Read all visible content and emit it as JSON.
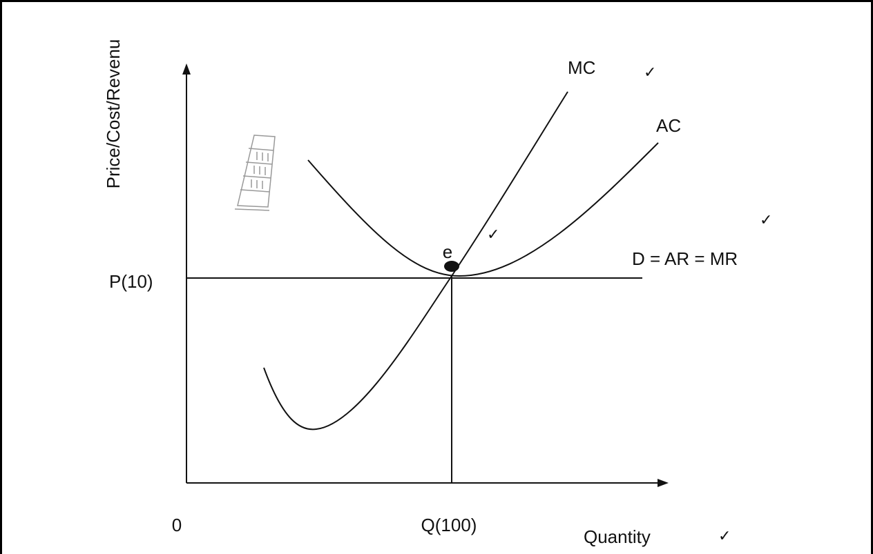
{
  "diagram": {
    "y_axis_label": "Price/Cost/Revenu",
    "x_axis_label": "Quantity",
    "origin_label": "0",
    "price_label": "P(10)",
    "quantity_label": "Q(100)",
    "curves": {
      "mc": "MC",
      "ac": "AC",
      "demand": "D = AR = MR"
    },
    "equilibrium_label": "e",
    "checkmarks": [
      "✓",
      "✓",
      "✓",
      "✓"
    ]
  }
}
